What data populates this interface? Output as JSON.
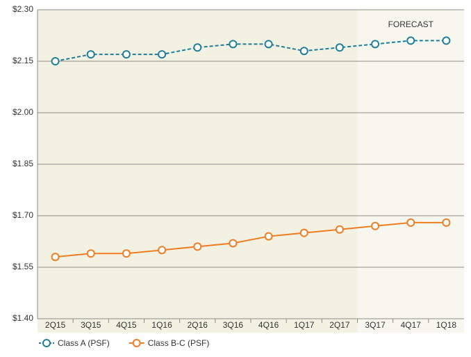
{
  "chart_data": {
    "type": "line",
    "categories": [
      "2Q15",
      "3Q15",
      "4Q15",
      "1Q16",
      "2Q16",
      "3Q16",
      "4Q16",
      "1Q17",
      "2Q17",
      "3Q17",
      "4Q17",
      "1Q18"
    ],
    "series": [
      {
        "name": "Class A (PSF)",
        "color": "#1f7e9a",
        "dashed": true,
        "values": [
          2.15,
          2.17,
          2.17,
          2.17,
          2.19,
          2.2,
          2.2,
          2.18,
          2.19,
          2.2,
          2.21,
          2.21
        ]
      },
      {
        "name": "Class B-C (PSF)",
        "color": "#f07d22",
        "dashed": false,
        "values": [
          1.58,
          1.59,
          1.59,
          1.6,
          1.61,
          1.62,
          1.64,
          1.65,
          1.66,
          1.67,
          1.68,
          1.68
        ]
      }
    ],
    "ylim": [
      1.4,
      2.3
    ],
    "yticks": [
      {
        "value": 1.4,
        "label": "$1.40"
      },
      {
        "value": 1.55,
        "label": "$1.55"
      },
      {
        "value": 1.7,
        "label": "$1.70"
      },
      {
        "value": 1.85,
        "label": "$1.85"
      },
      {
        "value": 2.0,
        "label": "$2.00"
      },
      {
        "value": 2.15,
        "label": "$2.15"
      },
      {
        "value": 2.3,
        "label": "$2.30"
      }
    ],
    "grid": true,
    "forecast_label": "FORECAST",
    "forecast_from": "3Q17",
    "legend": "bottom-left"
  }
}
